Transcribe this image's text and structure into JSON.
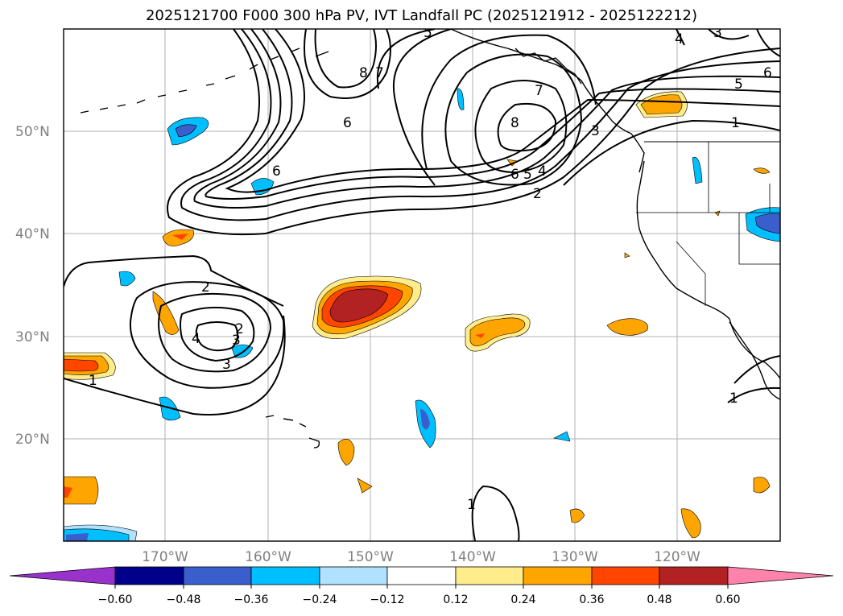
{
  "title": "2025121700 F000 300 hPa PV, IVT Landfall PC (2025121912 - 2025122212)",
  "map": {
    "lat_labels": [
      "50°N",
      "40°N",
      "30°N",
      "20°N"
    ],
    "lon_labels": [
      "170°W",
      "160°W",
      "150°W",
      "140°W",
      "130°W",
      "120°W"
    ]
  },
  "contour_labels": [
    "8",
    "7",
    "6",
    "6",
    "8",
    "7",
    "6",
    "5",
    "4",
    "3",
    "2",
    "5",
    "6",
    "4",
    "3",
    "1",
    "2",
    "4",
    "3",
    "3",
    "2",
    "1",
    "1",
    "1",
    "5"
  ],
  "colorbar": {
    "ticks": [
      "−0.60",
      "−0.48",
      "−0.36",
      "−0.24",
      "−0.12",
      "0.12",
      "0.24",
      "0.36",
      "0.48",
      "0.60"
    ],
    "colors": {
      "under": "#9932CC",
      "b1": "#00008B",
      "b2": "#3A5FCD",
      "b3": "#00BFFF",
      "b4": "#B0E2FF",
      "b5": "#FFFFFF",
      "b6": "#FFEC8B",
      "b7": "#FFA500",
      "b8": "#FF4500",
      "b9": "#B22222",
      "over": "#FF82AB"
    }
  },
  "chart_data": {
    "type": "contour_map",
    "title": "2025121700 F000 300 hPa PV, IVT Landfall PC (2025121912 - 2025122212)",
    "field_contoured": "300 hPa PV",
    "field_shaded": "IVT Landfall PC",
    "lat_range": [
      10,
      60
    ],
    "lon_range": [
      -180,
      -110
    ],
    "colorbar_levels": [
      -0.6,
      -0.48,
      -0.36,
      -0.24,
      -0.12,
      0.12,
      0.24,
      0.36,
      0.48,
      0.6
    ],
    "pv_contour_levels": [
      1,
      2,
      3,
      4,
      5,
      6,
      7,
      8
    ]
  }
}
